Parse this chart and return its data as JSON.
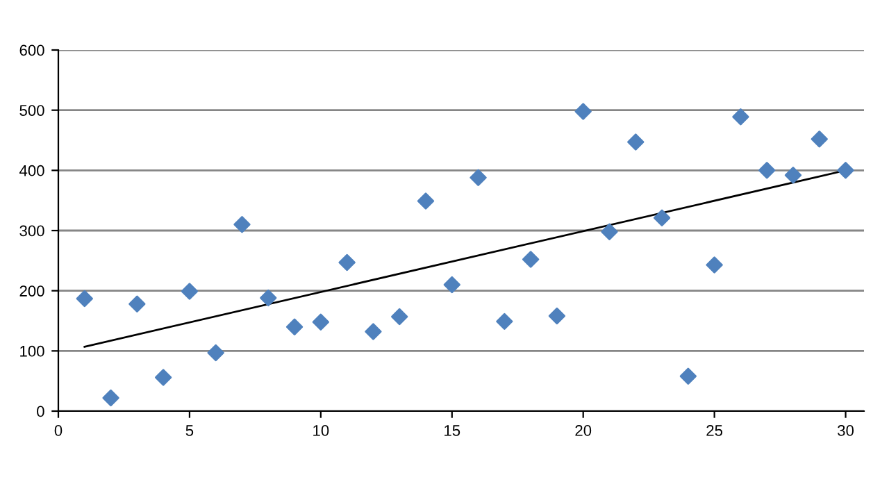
{
  "chart_data": {
    "type": "scatter",
    "grid": "y",
    "xlim": [
      0,
      30.7
    ],
    "ylim": [
      0,
      600
    ],
    "xticks": [
      0,
      5,
      10,
      15,
      20,
      25,
      30
    ],
    "yticks": [
      0,
      100,
      200,
      300,
      400,
      500,
      600
    ],
    "series": [
      {
        "marker": "diamond",
        "color": "#4f81bd",
        "x": [
          1,
          2,
          3,
          4,
          5,
          6,
          7,
          8,
          9,
          10,
          11,
          12,
          13,
          14,
          15,
          16,
          17,
          18,
          19,
          20,
          21,
          22,
          23,
          24,
          25,
          26,
          27,
          28,
          29,
          30
        ],
        "values": [
          187,
          22,
          178,
          56,
          199,
          97,
          310,
          188,
          140,
          148,
          247,
          132,
          157,
          349,
          210,
          388,
          149,
          252,
          158,
          498,
          298,
          447,
          321,
          58,
          243,
          489,
          400,
          392,
          452,
          400
        ]
      },
      {
        "type": "line",
        "marker": "none",
        "color": "#000000",
        "x": [
          1,
          30
        ],
        "values": [
          107,
          400
        ]
      }
    ]
  }
}
